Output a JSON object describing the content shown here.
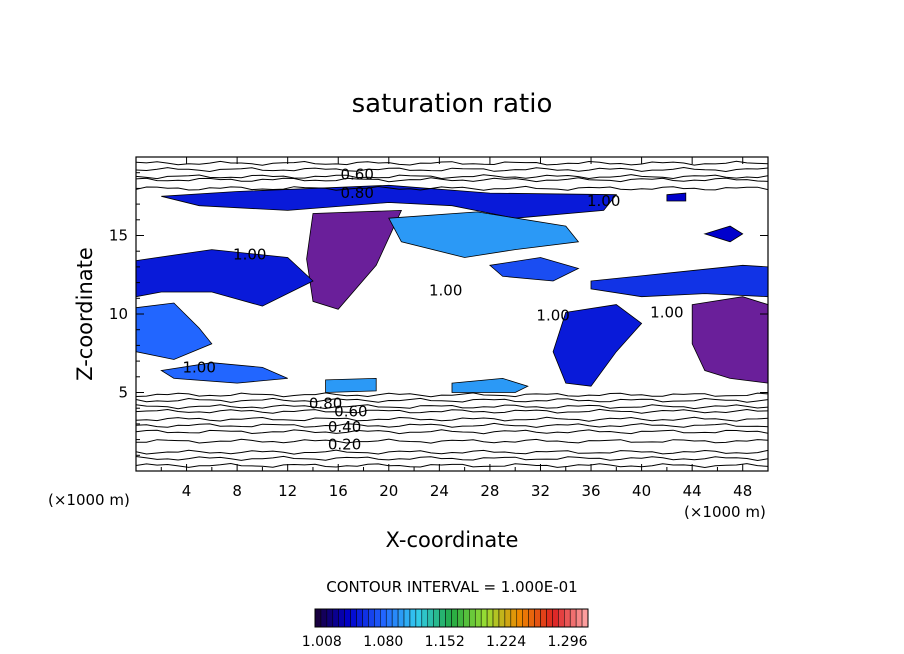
{
  "chart_data": {
    "type": "heatmap",
    "title": "saturation ratio",
    "xlabel": "X-coordinate",
    "ylabel": "Z-coordinate",
    "x_unit": "(×1000 m)",
    "y_unit": "(×1000 m)",
    "xlim": [
      0,
      50
    ],
    "ylim": [
      0,
      20
    ],
    "x_ticks": [
      4,
      8,
      12,
      16,
      20,
      24,
      28,
      32,
      36,
      40,
      44,
      48
    ],
    "y_ticks": [
      5,
      10,
      15
    ],
    "contour_interval_text": "CONTOUR INTERVAL = 1.000E-01",
    "contour_labels": [
      {
        "text": "0.60",
        "x": 17.5,
        "z": 18.9
      },
      {
        "text": "0.80",
        "x": 17.5,
        "z": 17.7
      },
      {
        "text": "1.00",
        "x": 37.0,
        "z": 17.2
      },
      {
        "text": "1.00",
        "x": 9.0,
        "z": 13.8
      },
      {
        "text": "1.00",
        "x": 24.5,
        "z": 11.5
      },
      {
        "text": "1.00",
        "x": 33.0,
        "z": 9.9
      },
      {
        "text": "1.00",
        "x": 42.0,
        "z": 10.1
      },
      {
        "text": "1.00",
        "x": 5.0,
        "z": 6.6
      },
      {
        "text": "0.80",
        "x": 15.0,
        "z": 4.3
      },
      {
        "text": "0.60",
        "x": 17.0,
        "z": 3.8
      },
      {
        "text": "0.40",
        "x": 16.5,
        "z": 2.8
      },
      {
        "text": "0.20",
        "x": 16.5,
        "z": 1.7
      }
    ],
    "contour_levels_z": [
      0.35,
      0.8,
      1.2,
      1.9,
      2.5,
      2.9,
      3.3,
      3.8,
      4.1,
      4.5,
      4.85,
      18.0,
      18.55,
      18.75,
      19.2,
      19.6
    ],
    "supersaturated_regions": [
      {
        "level": 1.05,
        "points": [
          [
            2,
            17.5
          ],
          [
            8,
            17.8
          ],
          [
            20,
            18.2
          ],
          [
            28,
            17.7
          ],
          [
            38,
            17.6
          ],
          [
            37,
            16.6
          ],
          [
            30,
            16.1
          ],
          [
            25,
            16.9
          ],
          [
            20,
            17.1
          ],
          [
            12,
            16.6
          ],
          [
            5,
            16.9
          ]
        ]
      },
      {
        "level": 1.03,
        "points": [
          [
            14,
            16.4
          ],
          [
            21,
            16.6
          ],
          [
            19,
            13.1
          ],
          [
            16,
            10.3
          ],
          [
            14,
            10.8
          ],
          [
            13.5,
            13.5
          ]
        ]
      },
      {
        "level": 1.1,
        "points": [
          [
            20,
            16.1
          ],
          [
            27,
            16.5
          ],
          [
            34,
            15.6
          ],
          [
            35,
            14.6
          ],
          [
            30,
            14.1
          ],
          [
            26,
            13.6
          ],
          [
            21,
            14.6
          ]
        ]
      },
      {
        "level": 1.05,
        "points": [
          [
            0,
            13.4
          ],
          [
            6,
            14.1
          ],
          [
            12,
            13.6
          ],
          [
            14,
            12.1
          ],
          [
            10,
            10.5
          ],
          [
            6,
            11.4
          ],
          [
            2,
            11.4
          ],
          [
            0,
            11.1
          ]
        ]
      },
      {
        "level": 1.08,
        "points": [
          [
            0,
            10.4
          ],
          [
            3,
            10.7
          ],
          [
            5,
            9.1
          ],
          [
            6,
            8.1
          ],
          [
            3,
            7.1
          ],
          [
            0,
            7.6
          ]
        ]
      },
      {
        "level": 1.06,
        "points": [
          [
            36,
            12.1
          ],
          [
            42,
            12.6
          ],
          [
            48,
            13.1
          ],
          [
            50,
            13.0
          ],
          [
            50,
            11.1
          ],
          [
            45,
            11.3
          ],
          [
            40,
            11.1
          ],
          [
            36,
            11.6
          ]
        ]
      },
      {
        "level": 1.03,
        "points": [
          [
            44,
            10.6
          ],
          [
            48,
            11.1
          ],
          [
            50,
            10.6
          ],
          [
            50,
            5.6
          ],
          [
            47,
            5.9
          ],
          [
            45,
            6.4
          ],
          [
            44,
            8.1
          ]
        ]
      },
      {
        "level": 1.05,
        "points": [
          [
            34,
            10.1
          ],
          [
            38,
            10.6
          ],
          [
            40,
            9.4
          ],
          [
            38,
            7.6
          ],
          [
            36,
            5.4
          ],
          [
            34,
            5.6
          ],
          [
            33,
            7.6
          ]
        ]
      },
      {
        "level": 1.1,
        "points": [
          [
            15,
            5.8
          ],
          [
            19,
            5.9
          ],
          [
            19,
            5.1
          ],
          [
            15,
            5.0
          ]
        ]
      },
      {
        "level": 1.1,
        "points": [
          [
            25,
            5.6
          ],
          [
            29,
            5.9
          ],
          [
            31,
            5.4
          ],
          [
            30,
            5.0
          ],
          [
            25,
            5.0
          ]
        ]
      },
      {
        "level": 1.07,
        "points": [
          [
            28,
            13.1
          ],
          [
            32,
            13.6
          ],
          [
            35,
            12.9
          ],
          [
            33,
            12.1
          ],
          [
            29,
            12.4
          ]
        ]
      },
      {
        "level": 1.08,
        "points": [
          [
            2,
            6.4
          ],
          [
            6,
            6.9
          ],
          [
            10,
            6.6
          ],
          [
            12,
            5.9
          ],
          [
            8,
            5.6
          ],
          [
            3,
            5.9
          ]
        ]
      },
      {
        "level": 1.04,
        "points": [
          [
            45,
            15.1
          ],
          [
            47,
            15.6
          ],
          [
            48,
            15.1
          ],
          [
            47,
            14.6
          ]
        ]
      },
      {
        "level": 1.04,
        "points": [
          [
            42,
            17.6
          ],
          [
            43.5,
            17.7
          ],
          [
            43.5,
            17.2
          ],
          [
            42,
            17.2
          ]
        ]
      }
    ],
    "colorbar": {
      "min": 1.0,
      "max": 1.32,
      "tick_labels": [
        "1.008",
        "1.080",
        "1.152",
        "1.224",
        "1.296"
      ],
      "colors": [
        "#1a0033",
        "#0000cc",
        "#2266ff",
        "#33ccee",
        "#22aa44",
        "#99dd33",
        "#ee8800",
        "#dd2222",
        "#ffaaaa"
      ]
    },
    "grid": false
  }
}
